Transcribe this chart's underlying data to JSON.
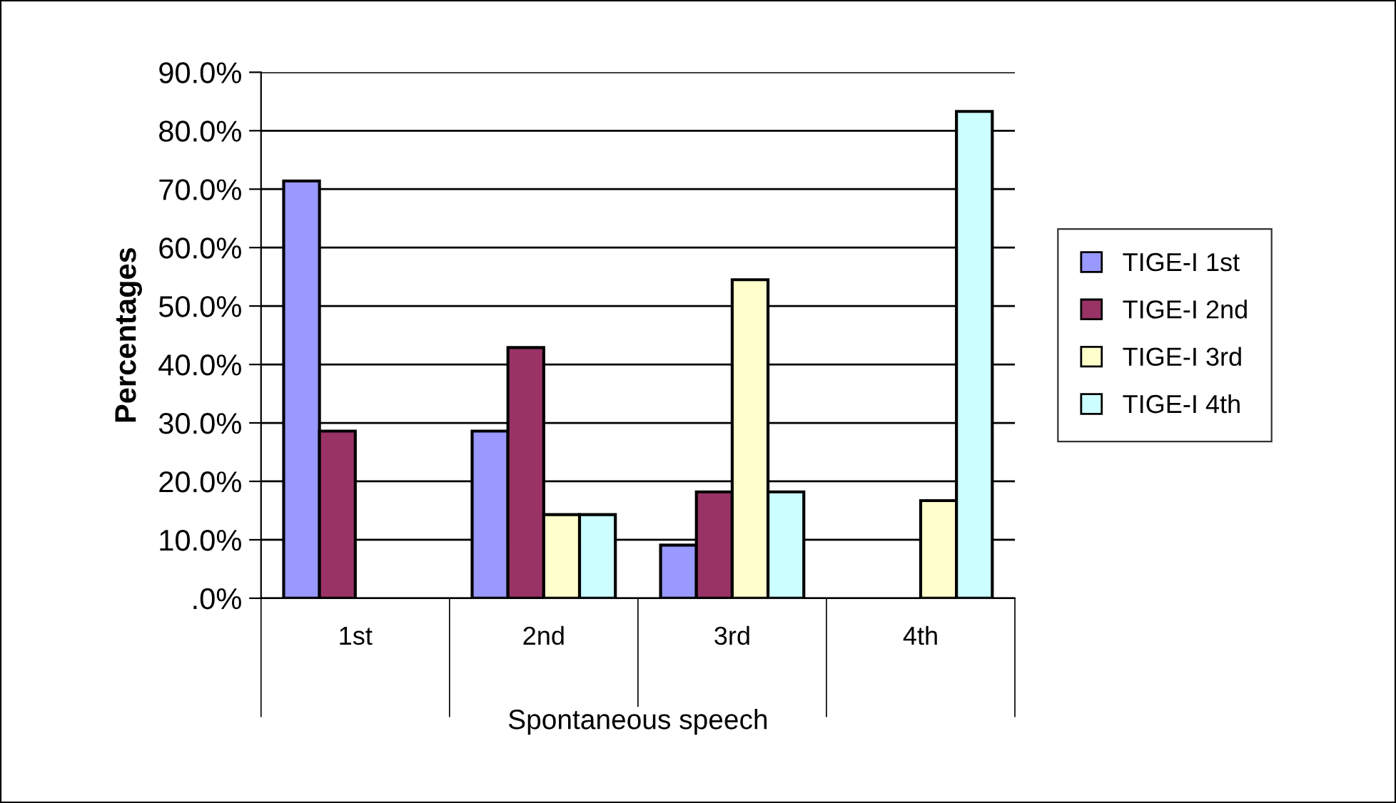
{
  "chart_data": {
    "type": "bar",
    "xlabel": "Spontaneous speech",
    "ylabel": "Percentages",
    "categories": [
      "1st",
      "2nd",
      "3rd",
      "4th"
    ],
    "series": [
      {
        "name": "TIGE-I 1st",
        "color": "#9999ff",
        "values": [
          71.4,
          28.6,
          9.1,
          0
        ]
      },
      {
        "name": "TIGE-I 2nd",
        "color": "#993366",
        "values": [
          28.6,
          42.9,
          18.2,
          0
        ]
      },
      {
        "name": "TIGE-I 3rd",
        "color": "#ffffcc",
        "values": [
          0,
          14.3,
          54.5,
          16.7
        ]
      },
      {
        "name": "TIGE-I 4th",
        "color": "#ccffff",
        "values": [
          0,
          14.3,
          18.2,
          83.3
        ]
      }
    ],
    "ylim": [
      0,
      90
    ],
    "yticks": [
      {
        "value": 0,
        "label": ".0%"
      },
      {
        "value": 10,
        "label": "10.0%"
      },
      {
        "value": 20,
        "label": "20.0%"
      },
      {
        "value": 30,
        "label": "30.0%"
      },
      {
        "value": 40,
        "label": "40.0%"
      },
      {
        "value": 50,
        "label": "50.0%"
      },
      {
        "value": 60,
        "label": "60.0%"
      },
      {
        "value": 70,
        "label": "70.0%"
      },
      {
        "value": 80,
        "label": "80.0%"
      },
      {
        "value": 90,
        "label": "90.0%"
      }
    ],
    "grid": "y",
    "legend": "right"
  }
}
